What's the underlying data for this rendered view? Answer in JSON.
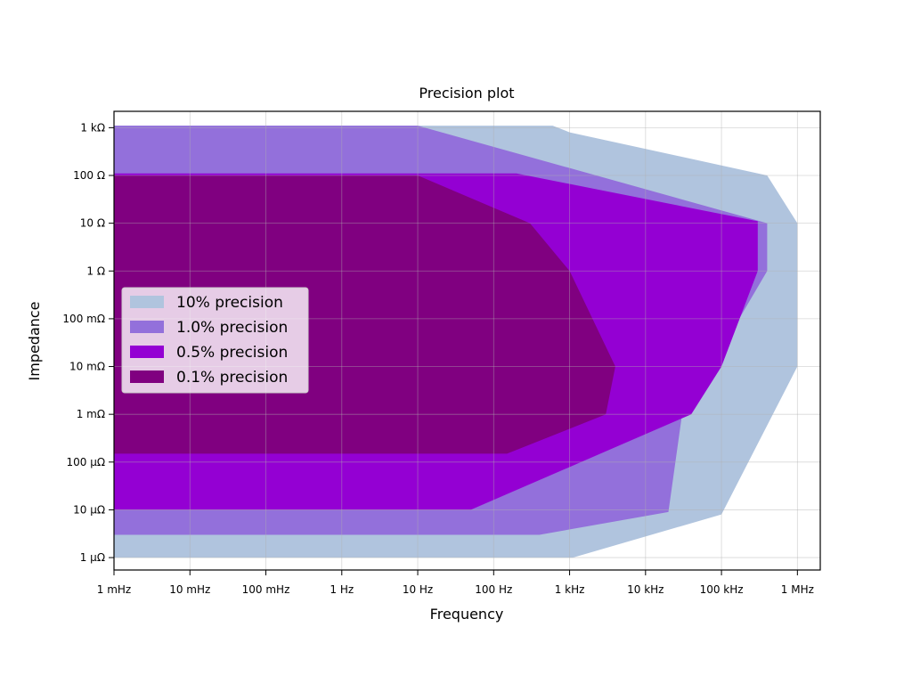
{
  "chart_data": {
    "type": "area",
    "title": "Precision plot",
    "xlabel": "Frequency",
    "ylabel": "Impedance",
    "xscale": "log",
    "yscale": "log",
    "xlim": [
      0.001,
      2000000
    ],
    "ylim": [
      5.5e-07,
      2200
    ],
    "x_ticks": [
      0.001,
      0.01,
      0.1,
      1,
      10,
      100,
      1000,
      10000,
      100000,
      1000000
    ],
    "x_tick_labels": [
      "1 mHz",
      "10 mHz",
      "100 mHz",
      "1 Hz",
      "10 Hz",
      "100 Hz",
      "1 kHz",
      "10 kHz",
      "100 kHz",
      "1 MHz"
    ],
    "y_ticks": [
      1e-06,
      1e-05,
      0.0001,
      0.001,
      0.01,
      0.1,
      1,
      10,
      100,
      1000
    ],
    "y_tick_labels": [
      "1 μΩ",
      "10 μΩ",
      "100 μΩ",
      "1 mΩ",
      "10 mΩ",
      "100 mΩ",
      "1 Ω",
      "10 Ω",
      "100 Ω",
      "1 kΩ"
    ],
    "grid": true,
    "legend_position": "center-left",
    "series": [
      {
        "name": "10% precision",
        "color": "#b0c4de",
        "polygon": [
          [
            0.001,
            1100
          ],
          [
            600,
            1100
          ],
          [
            1000,
            800
          ],
          [
            400000,
            100
          ],
          [
            1000000,
            10
          ],
          [
            1000000,
            0.01
          ],
          [
            100000,
            8e-06
          ],
          [
            1100,
            1e-06
          ],
          [
            0.001,
            1e-06
          ]
        ]
      },
      {
        "name": "1.0% precision",
        "color": "#9370db",
        "polygon": [
          [
            0.001,
            1100
          ],
          [
            10,
            1100
          ],
          [
            400000,
            10
          ],
          [
            400000,
            1
          ],
          [
            30000,
            0.0009
          ],
          [
            20000,
            9e-06
          ],
          [
            400,
            3e-06
          ],
          [
            0.001,
            3e-06
          ]
        ]
      },
      {
        "name": "0.5% precision",
        "color": "#9400d3",
        "polygon": [
          [
            0.001,
            110
          ],
          [
            200,
            110
          ],
          [
            300000,
            11
          ],
          [
            300000,
            1
          ],
          [
            100000,
            0.01
          ],
          [
            40000,
            0.001
          ],
          [
            50,
            1e-05
          ],
          [
            0.001,
            1e-05
          ]
        ]
      },
      {
        "name": "0.1% precision",
        "color": "#800080",
        "polygon": [
          [
            0.001,
            100
          ],
          [
            10,
            100
          ],
          [
            300,
            10
          ],
          [
            1000,
            1
          ],
          [
            4000,
            0.01
          ],
          [
            3000,
            0.001
          ],
          [
            150,
            0.00015
          ],
          [
            0.001,
            0.00015
          ]
        ]
      }
    ]
  }
}
